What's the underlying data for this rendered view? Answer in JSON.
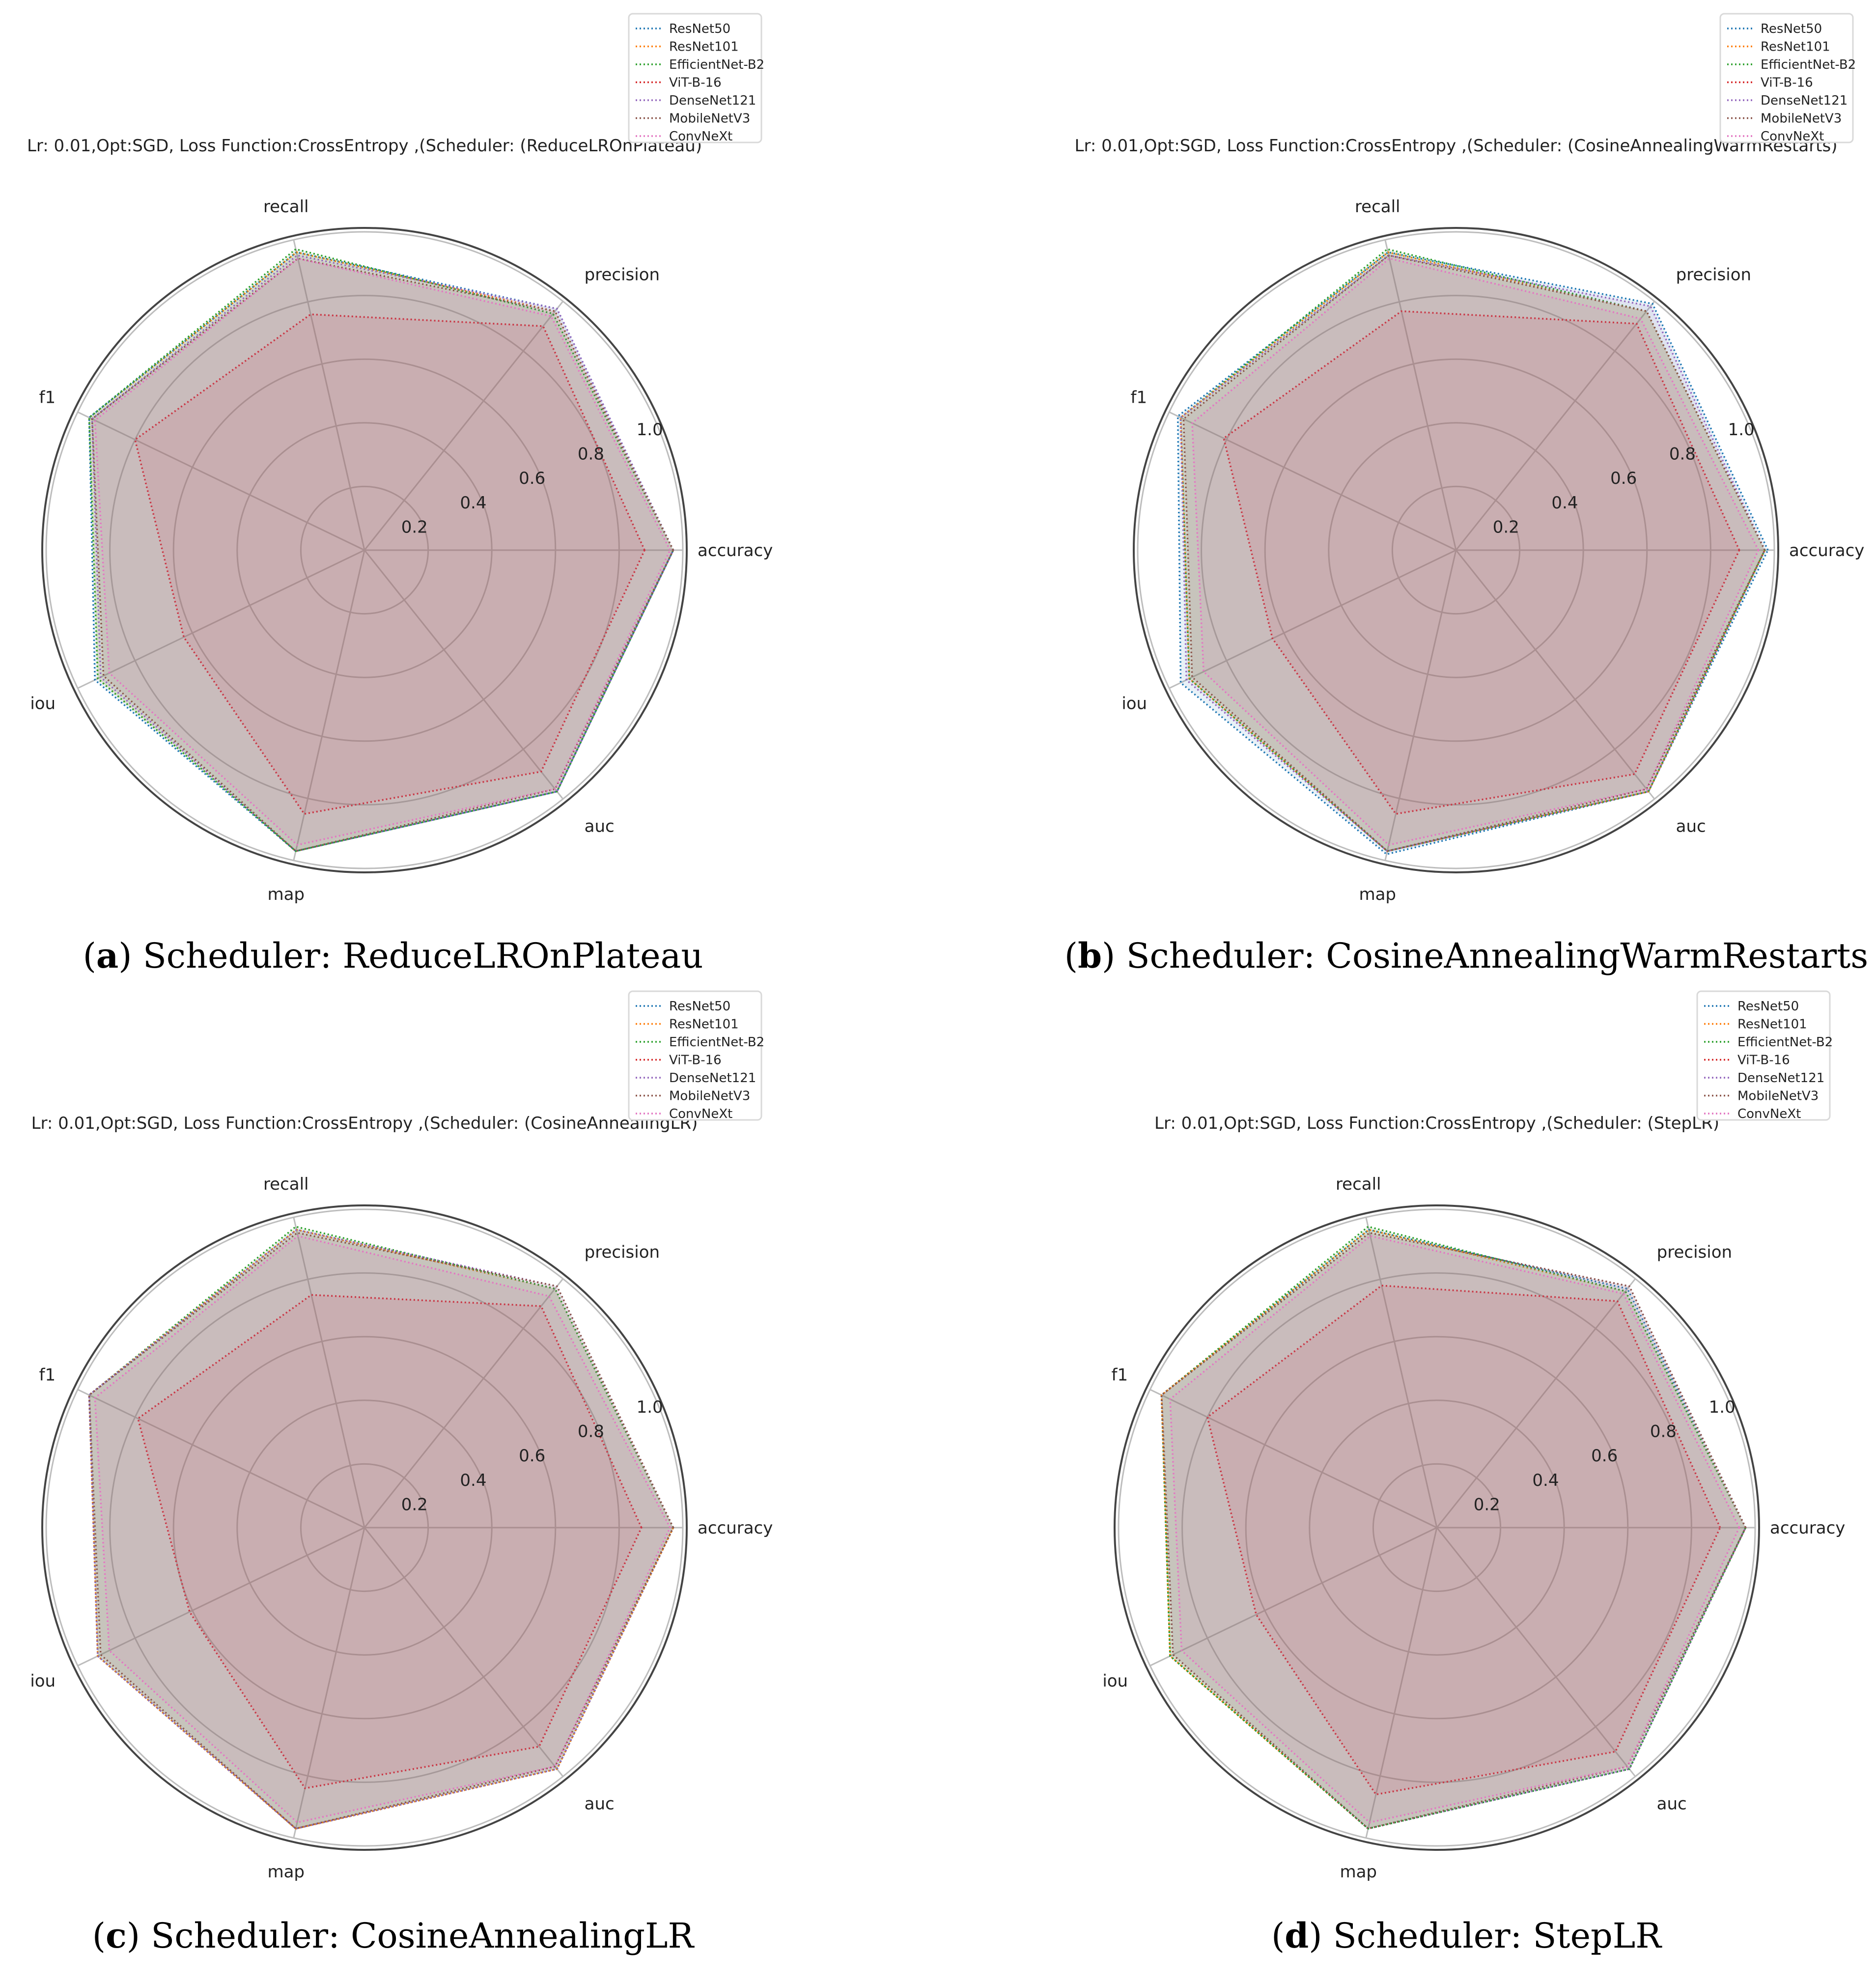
{
  "figure": {
    "captions": [
      {
        "letter": "a",
        "text": ") Scheduler: ReduceLROnPlateau",
        "open": "("
      },
      {
        "letter": "b",
        "text": ") Scheduler: CosineAnnealingWarmRestarts",
        "open": "("
      },
      {
        "letter": "c",
        "text": ") Scheduler: CosineAnnealingLR",
        "open": "("
      },
      {
        "letter": "d",
        "text": ") Scheduler: StepLR",
        "open": "("
      }
    ]
  },
  "chart_data": [
    {
      "type": "radar",
      "title": "Lr: 0.01,Opt:SGD, Loss Function:CrossEntropy ,(Scheduler: (ReduceLROnPlateau)",
      "axes": [
        "accuracy",
        "precision",
        "recall",
        "f1",
        "iou",
        "map",
        "auc"
      ],
      "rlim": [
        0,
        1.0
      ],
      "rticks": [
        "0.2",
        "0.4",
        "0.6",
        "0.8",
        "1.0"
      ],
      "rtick_values": [
        0.2,
        0.4,
        0.6,
        0.8,
        1.0
      ],
      "legend_position": "top-right",
      "series": [
        {
          "name": "ResNet50",
          "color": "#1f77b4",
          "values": [
            0.97,
            0.97,
            0.96,
            0.96,
            0.94,
            0.97,
            0.97
          ]
        },
        {
          "name": "ResNet101",
          "color": "#ff7f0e",
          "values": [
            0.97,
            0.96,
            0.96,
            0.96,
            0.93,
            0.97,
            0.97
          ]
        },
        {
          "name": "EfficientNet-B2",
          "color": "#2ca02c",
          "values": [
            0.97,
            0.95,
            0.97,
            0.96,
            0.93,
            0.97,
            0.97
          ]
        },
        {
          "name": "ViT-B-16",
          "color": "#d62728",
          "values": [
            0.88,
            0.9,
            0.76,
            0.8,
            0.63,
            0.85,
            0.89
          ]
        },
        {
          "name": "DenseNet121",
          "color": "#9467bd",
          "values": [
            0.97,
            0.97,
            0.95,
            0.95,
            0.92,
            0.97,
            0.97
          ]
        },
        {
          "name": "MobileNetV3",
          "color": "#8c564b",
          "values": [
            0.97,
            0.96,
            0.94,
            0.95,
            0.91,
            0.97,
            0.96
          ]
        },
        {
          "name": "ConvNeXt",
          "color": "#e377c2",
          "values": [
            0.96,
            0.94,
            0.94,
            0.94,
            0.89,
            0.95,
            0.96
          ]
        }
      ]
    },
    {
      "type": "radar",
      "title": "Lr: 0.01,Opt:SGD, Loss Function:CrossEntropy ,(Scheduler: (CosineAnnealingWarmRestarts)",
      "axes": [
        "accuracy",
        "precision",
        "recall",
        "f1",
        "iou",
        "map",
        "auc"
      ],
      "rlim": [
        0,
        1.0
      ],
      "rticks": [
        "0.2",
        "0.4",
        "0.6",
        "0.8",
        "1.0"
      ],
      "rtick_values": [
        0.2,
        0.4,
        0.6,
        0.8,
        1.0
      ],
      "legend_position": "top-right",
      "series": [
        {
          "name": "ResNet50",
          "color": "#1f77b4",
          "values": [
            0.98,
            0.99,
            0.96,
            0.97,
            0.96,
            0.98,
            0.97
          ]
        },
        {
          "name": "ResNet101",
          "color": "#ff7f0e",
          "values": [
            0.97,
            0.96,
            0.96,
            0.96,
            0.93,
            0.97,
            0.97
          ]
        },
        {
          "name": "EfficientNet-B2",
          "color": "#2ca02c",
          "values": [
            0.97,
            0.96,
            0.97,
            0.96,
            0.93,
            0.97,
            0.97
          ]
        },
        {
          "name": "ViT-B-16",
          "color": "#d62728",
          "values": [
            0.89,
            0.91,
            0.77,
            0.81,
            0.64,
            0.85,
            0.9
          ]
        },
        {
          "name": "DenseNet121",
          "color": "#9467bd",
          "values": [
            0.97,
            0.98,
            0.95,
            0.96,
            0.94,
            0.97,
            0.97
          ]
        },
        {
          "name": "MobileNetV3",
          "color": "#8c564b",
          "values": [
            0.97,
            0.96,
            0.95,
            0.95,
            0.92,
            0.97,
            0.96
          ]
        },
        {
          "name": "ConvNeXt",
          "color": "#e377c2",
          "values": [
            0.95,
            0.93,
            0.94,
            0.92,
            0.88,
            0.95,
            0.96
          ]
        }
      ]
    },
    {
      "type": "radar",
      "title": "Lr: 0.01,Opt:SGD, Loss Function:CrossEntropy ,(Scheduler: (CosineAnnealingLR)",
      "axes": [
        "accuracy",
        "precision",
        "recall",
        "f1",
        "iou",
        "map",
        "auc"
      ],
      "rlim": [
        0,
        1.0
      ],
      "rticks": [
        "0.2",
        "0.4",
        "0.6",
        "0.8",
        "1.0"
      ],
      "rtick_values": [
        0.2,
        0.4,
        0.6,
        0.8,
        1.0
      ],
      "legend_position": "top-right",
      "series": [
        {
          "name": "ResNet50",
          "color": "#1f77b4",
          "values": [
            0.97,
            0.96,
            0.96,
            0.96,
            0.93,
            0.97,
            0.97
          ]
        },
        {
          "name": "ResNet101",
          "color": "#ff7f0e",
          "values": [
            0.97,
            0.96,
            0.96,
            0.96,
            0.93,
            0.97,
            0.97
          ]
        },
        {
          "name": "EfficientNet-B2",
          "color": "#2ca02c",
          "values": [
            0.97,
            0.96,
            0.97,
            0.96,
            0.93,
            0.97,
            0.97
          ]
        },
        {
          "name": "ViT-B-16",
          "color": "#d62728",
          "values": [
            0.87,
            0.89,
            0.75,
            0.79,
            0.61,
            0.84,
            0.88
          ]
        },
        {
          "name": "DenseNet121",
          "color": "#9467bd",
          "values": [
            0.97,
            0.97,
            0.96,
            0.96,
            0.93,
            0.97,
            0.97
          ]
        },
        {
          "name": "MobileNetV3",
          "color": "#8c564b",
          "values": [
            0.97,
            0.97,
            0.95,
            0.96,
            0.92,
            0.97,
            0.96
          ]
        },
        {
          "name": "ConvNeXt",
          "color": "#e377c2",
          "values": [
            0.96,
            0.93,
            0.94,
            0.94,
            0.89,
            0.95,
            0.96
          ]
        }
      ]
    },
    {
      "type": "radar",
      "title": "Lr: 0.01,Opt:SGD, Loss Function:CrossEntropy ,(Scheduler: (StepLR)",
      "axes": [
        "accuracy",
        "precision",
        "recall",
        "f1",
        "iou",
        "map",
        "auc"
      ],
      "rlim": [
        0,
        1.0
      ],
      "rticks": [
        "0.2",
        "0.4",
        "0.6",
        "0.8",
        "1.0"
      ],
      "rtick_values": [
        0.2,
        0.4,
        0.6,
        0.8,
        1.0
      ],
      "legend_position": "top-right",
      "series": [
        {
          "name": "ResNet50",
          "color": "#1f77b4",
          "values": [
            0.97,
            0.96,
            0.96,
            0.96,
            0.93,
            0.97,
            0.97
          ]
        },
        {
          "name": "ResNet101",
          "color": "#ff7f0e",
          "values": [
            0.97,
            0.95,
            0.96,
            0.96,
            0.93,
            0.97,
            0.97
          ]
        },
        {
          "name": "EfficientNet-B2",
          "color": "#2ca02c",
          "values": [
            0.97,
            0.95,
            0.97,
            0.96,
            0.93,
            0.97,
            0.97
          ]
        },
        {
          "name": "ViT-B-16",
          "color": "#d62728",
          "values": [
            0.89,
            0.91,
            0.78,
            0.8,
            0.63,
            0.86,
            0.9
          ]
        },
        {
          "name": "DenseNet121",
          "color": "#9467bd",
          "values": [
            0.97,
            0.97,
            0.95,
            0.96,
            0.92,
            0.97,
            0.97
          ]
        },
        {
          "name": "MobileNetV3",
          "color": "#8c564b",
          "values": [
            0.97,
            0.97,
            0.95,
            0.96,
            0.92,
            0.97,
            0.96
          ]
        },
        {
          "name": "ConvNeXt",
          "color": "#e377c2",
          "values": [
            0.95,
            0.94,
            0.94,
            0.93,
            0.89,
            0.95,
            0.96
          ]
        }
      ]
    }
  ]
}
